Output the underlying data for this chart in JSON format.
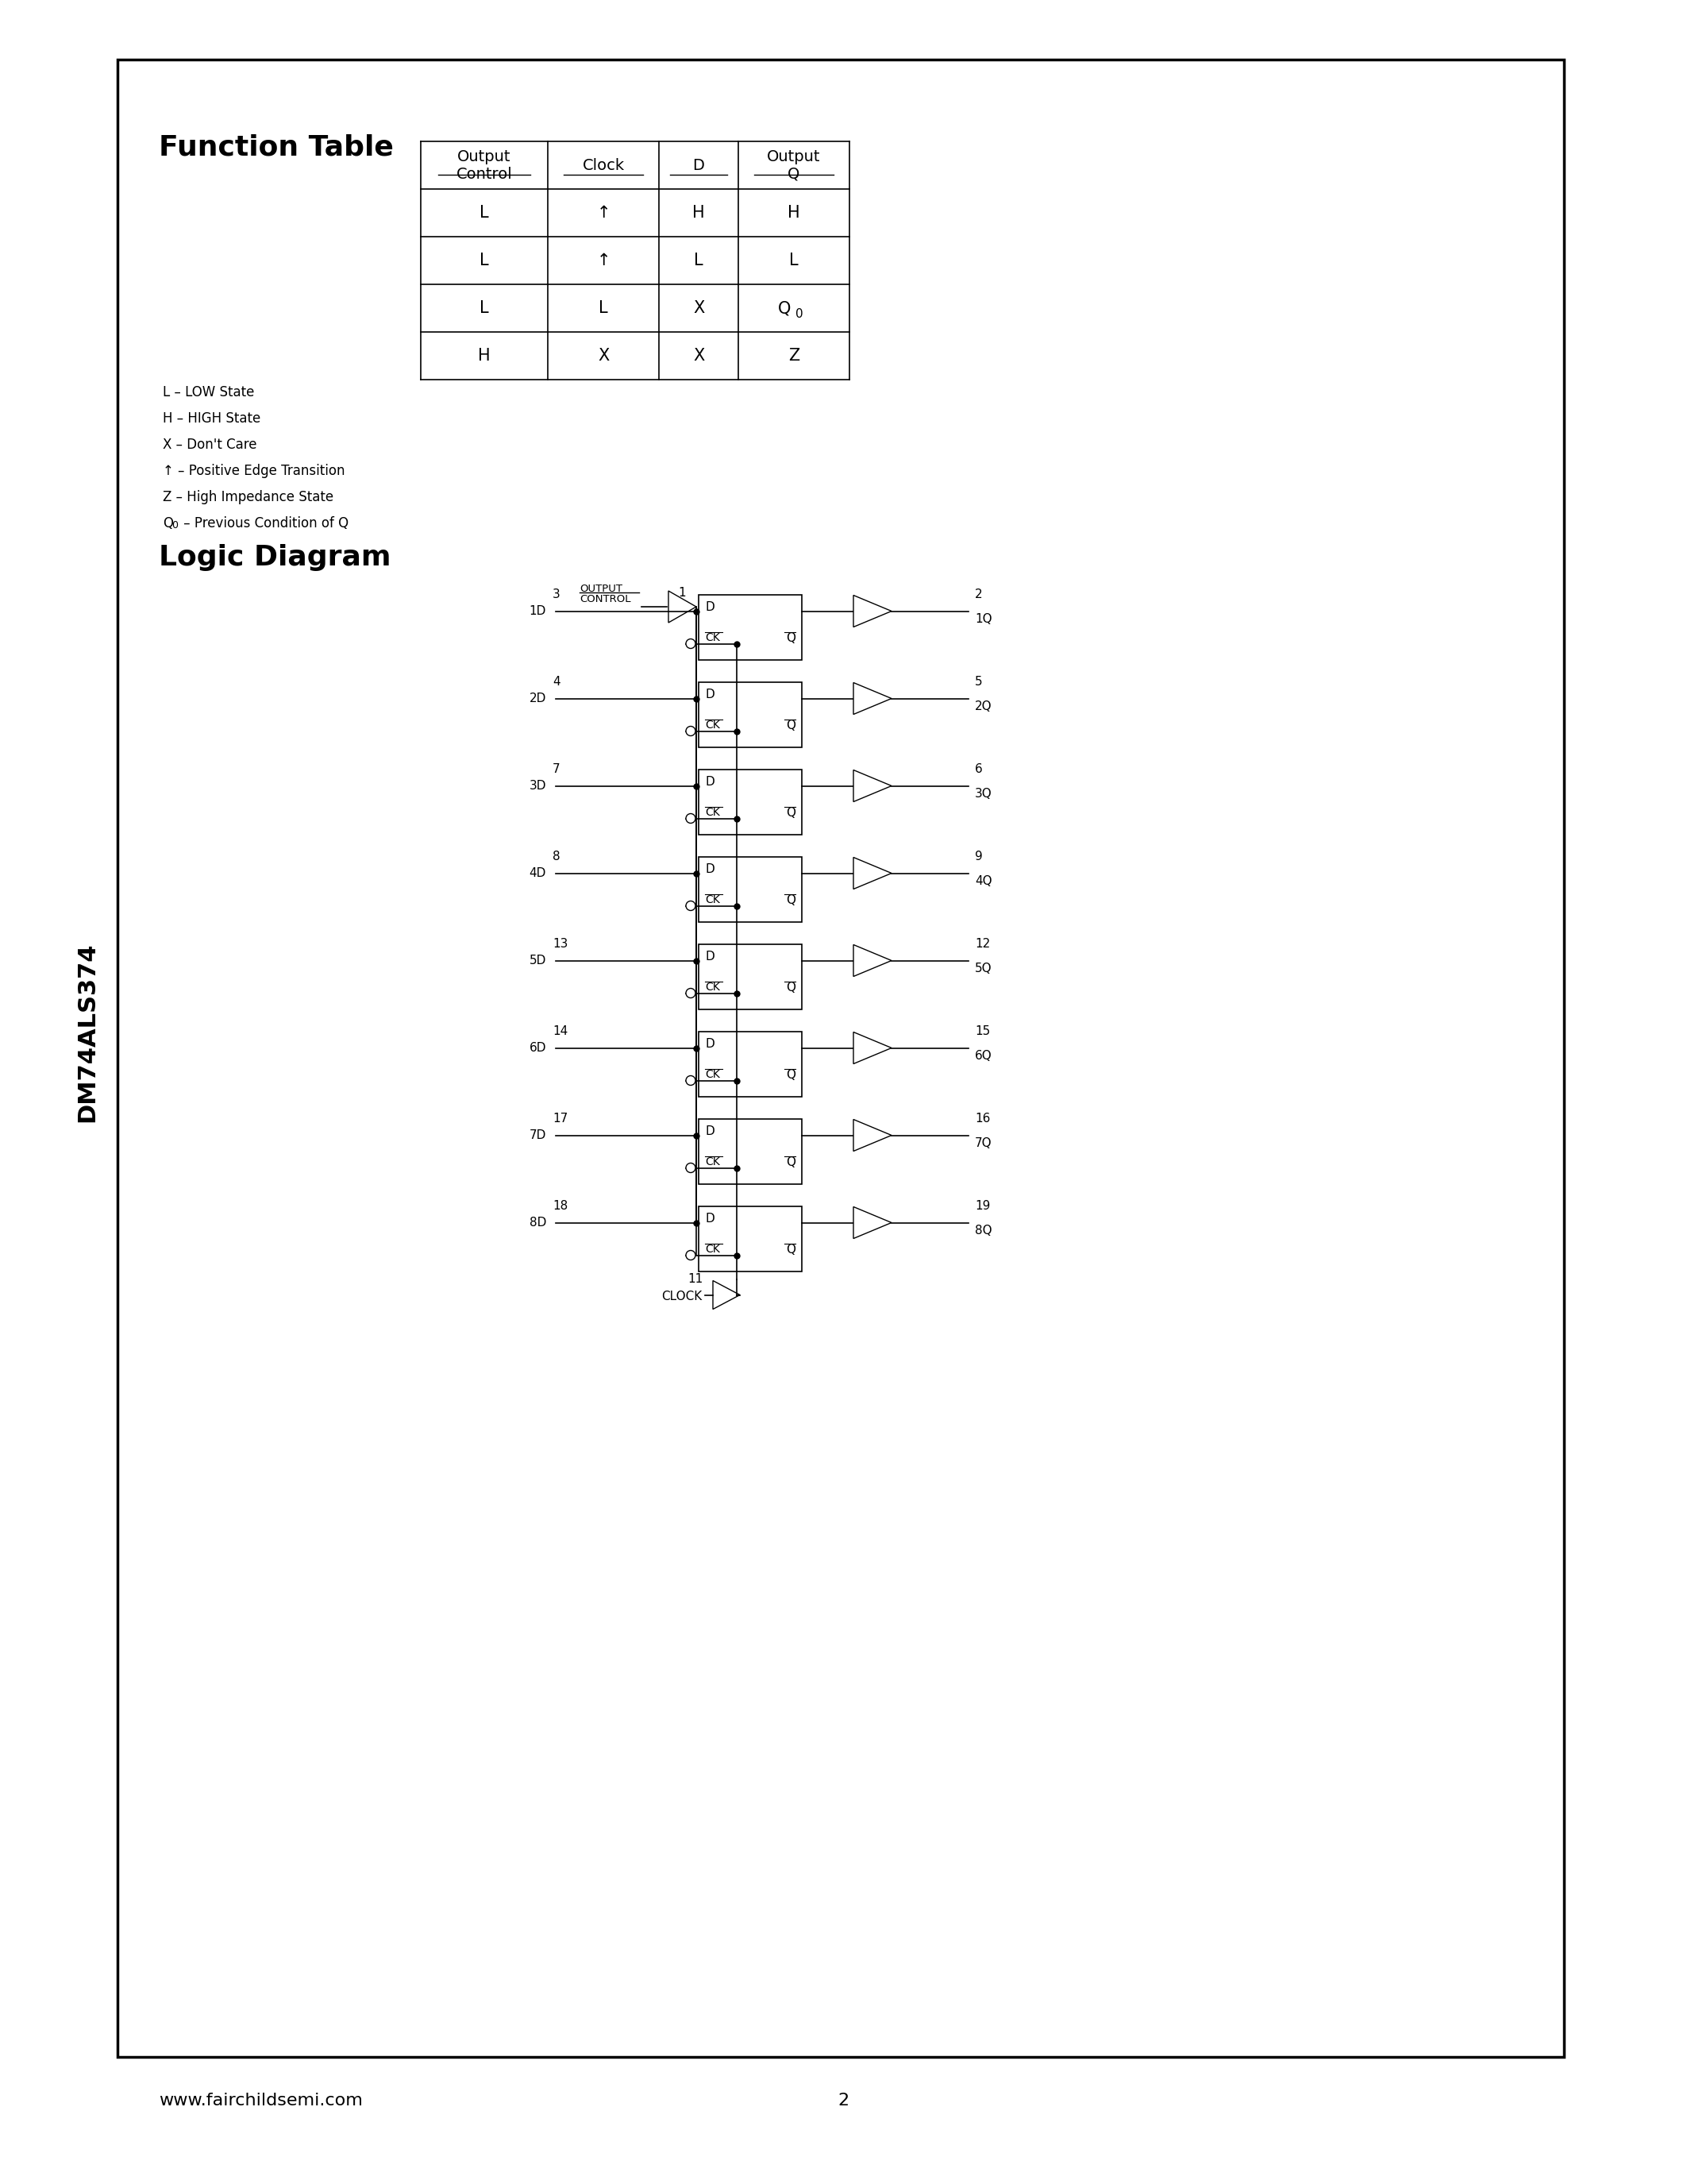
{
  "page_bg": "#ffffff",
  "border_color": "#000000",
  "title_side": "DM74ALS374",
  "section1_title": "Function Table",
  "section2_title": "Logic Diagram",
  "table_headers": [
    "Output\nControl",
    "Clock",
    "D",
    "Output\nQ"
  ],
  "table_rows": [
    [
      "L",
      "↑",
      "H",
      "H"
    ],
    [
      "L",
      "↑",
      "L",
      "L"
    ],
    [
      "L",
      "L",
      "X",
      "Q0"
    ],
    [
      "H",
      "X",
      "X",
      "Z"
    ]
  ],
  "legend_lines": [
    "L – LOW State",
    "H – HIGH State",
    "X – Don't Care",
    "↑ – Positive Edge Transition",
    "Z – High Impedance State",
    "Q₀ – Previous Condition of Q"
  ],
  "ff_d_pins": [
    3,
    4,
    7,
    8,
    13,
    14,
    17,
    18
  ],
  "ff_d_names": [
    "1D",
    "2D",
    "3D",
    "4D",
    "5D",
    "6D",
    "7D",
    "8D"
  ],
  "ff_q_pins": [
    2,
    5,
    6,
    9,
    12,
    15,
    16,
    19
  ],
  "ff_q_names": [
    "1Q",
    "2Q",
    "3Q",
    "4Q",
    "5Q",
    "6Q",
    "7Q",
    "8Q"
  ],
  "oc_pin": 1,
  "clk_pin": 11,
  "footer_left": "www.fairchildsemi.com",
  "footer_center": "2"
}
